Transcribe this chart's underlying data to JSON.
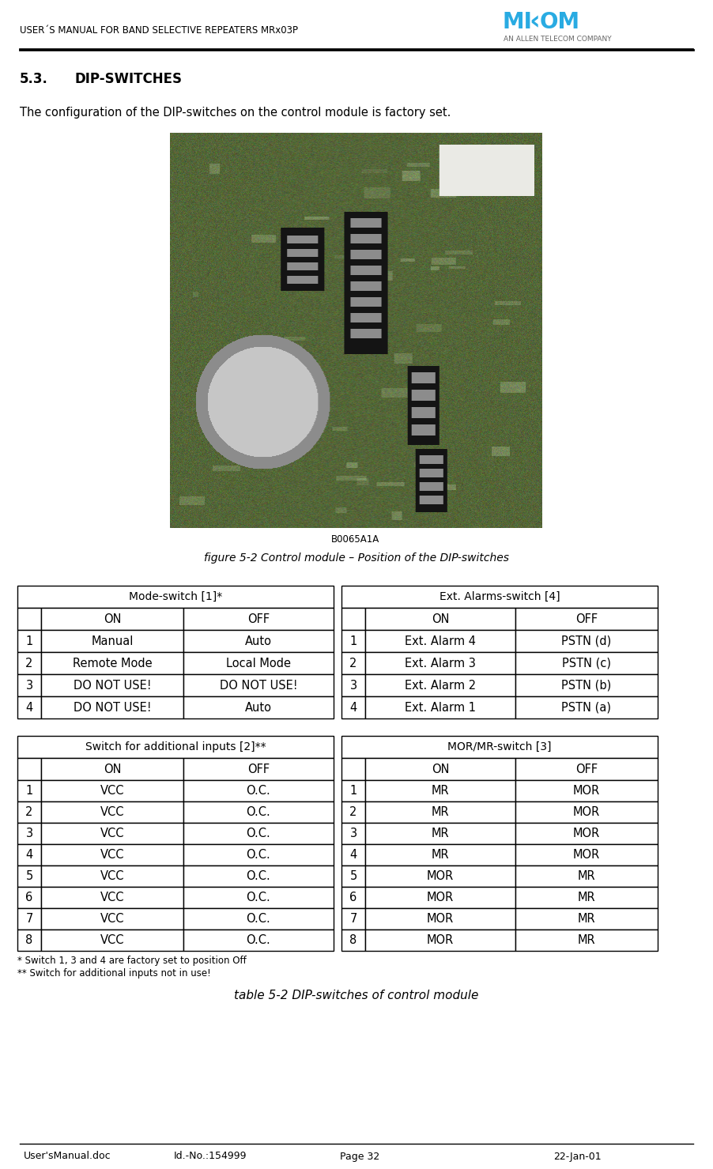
{
  "header_text": "USER´S MANUAL FOR BAND SELECTIVE REPEATERS MRx03P",
  "footer_items": [
    "User'sManual.doc",
    "Id.-No.:154999",
    "Page 32",
    "22-Jan-01"
  ],
  "section_num": "5.3.",
  "section_title": "DIP-SWITCHES",
  "intro_text": "The configuration of the DIP-switches on the control module is factory set.",
  "figure_caption": "figure 5-2 Control module – Position of the DIP-switches",
  "table_caption": "table 5-2 DIP-switches of control module",
  "footnote1": "* Switch 1, 3 and 4 are factory set to position Off",
  "footnote2": "** Switch for additional inputs not in use!",
  "img_label": "B0065A1A",
  "mode_switch_title": "Mode-switch [1]*",
  "mode_switch_headers": [
    "",
    "ON",
    "OFF"
  ],
  "mode_switch_rows": [
    [
      "1",
      "Manual",
      "Auto"
    ],
    [
      "2",
      "Remote Mode",
      "Local Mode"
    ],
    [
      "3",
      "DO NOT USE!",
      "DO NOT USE!"
    ],
    [
      "4",
      "DO NOT USE!",
      "Auto"
    ]
  ],
  "ext_alarm_title": "Ext. Alarms-switch [4]",
  "ext_alarm_headers": [
    "",
    "ON",
    "OFF"
  ],
  "ext_alarm_rows": [
    [
      "1",
      "Ext. Alarm 4",
      "PSTN (d)"
    ],
    [
      "2",
      "Ext. Alarm 3",
      "PSTN (c)"
    ],
    [
      "3",
      "Ext. Alarm 2",
      "PSTN (b)"
    ],
    [
      "4",
      "Ext. Alarm 1",
      "PSTN (a)"
    ]
  ],
  "add_inputs_title": "Switch for additional inputs [2]**",
  "add_inputs_headers": [
    "",
    "ON",
    "OFF"
  ],
  "add_inputs_rows": [
    [
      "1",
      "VCC",
      "O.C."
    ],
    [
      "2",
      "VCC",
      "O.C."
    ],
    [
      "3",
      "VCC",
      "O.C."
    ],
    [
      "4",
      "VCC",
      "O.C."
    ],
    [
      "5",
      "VCC",
      "O.C."
    ],
    [
      "6",
      "VCC",
      "O.C."
    ],
    [
      "7",
      "VCC",
      "O.C."
    ],
    [
      "8",
      "VCC",
      "O.C."
    ]
  ],
  "mor_switch_title": "MOR/MR-switch [3]",
  "mor_switch_headers": [
    "",
    "ON",
    "OFF"
  ],
  "mor_switch_rows": [
    [
      "1",
      "MR",
      "MOR"
    ],
    [
      "2",
      "MR",
      "MOR"
    ],
    [
      "3",
      "MR",
      "MOR"
    ],
    [
      "4",
      "MR",
      "MOR"
    ],
    [
      "5",
      "MOR",
      "MR"
    ],
    [
      "6",
      "MOR",
      "MR"
    ],
    [
      "7",
      "MOR",
      "MR"
    ],
    [
      "8",
      "MOR",
      "MR"
    ]
  ],
  "bg_color": "#ffffff",
  "pcb_color": "#5a6b45",
  "logo_color": "#29abe2"
}
